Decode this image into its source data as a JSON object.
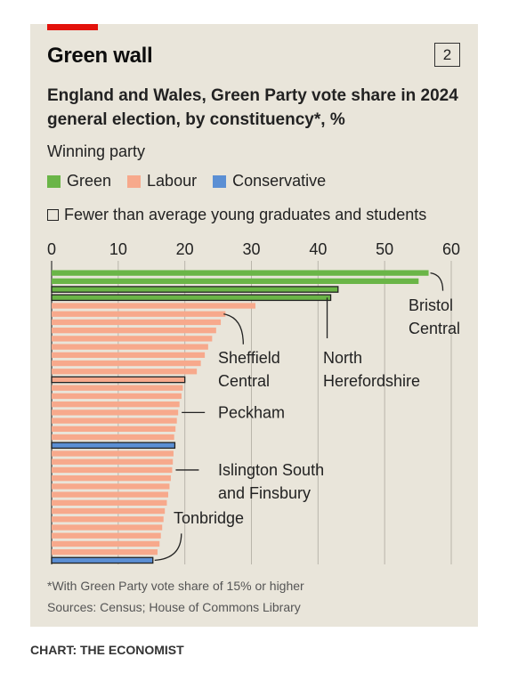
{
  "header": {
    "title": "Green wall",
    "badge": "2"
  },
  "legend": {
    "title": "Winning party",
    "items": [
      {
        "label": "Green",
        "color": "#6ab547"
      },
      {
        "label": "Labour",
        "color": "#f7a98c"
      },
      {
        "label": "Conservative",
        "color": "#5b8fd4"
      }
    ],
    "outline_label": "Fewer than average young graduates and students"
  },
  "footer": {
    "footnote": "*With Green Party vote share of 15% or higher",
    "source": "Sources: Census; House of Commons Library",
    "credit": "CHART: THE ECONOMIST"
  },
  "chart_data": {
    "type": "bar",
    "orientation": "horizontal",
    "title": "England and Wales, Green Party vote share in 2024 general election, by constituency*, %",
    "xlim": [
      0,
      60
    ],
    "xticks": [
      0,
      10,
      20,
      30,
      40,
      50,
      60
    ],
    "grid": true,
    "values": [
      56.6,
      55.1,
      43.0,
      41.9,
      30.6,
      26.1,
      25.4,
      24.7,
      24.1,
      23.5,
      23.0,
      22.4,
      21.8,
      20.0,
      19.7,
      19.5,
      19.2,
      19.0,
      18.8,
      18.6,
      18.4,
      18.5,
      18.3,
      18.2,
      18.1,
      17.9,
      17.7,
      17.5,
      17.3,
      17.0,
      16.8,
      16.6,
      16.4,
      16.2,
      15.9,
      15.2
    ],
    "party": [
      "Green",
      "Green",
      "Green",
      "Green",
      "Labour",
      "Labour",
      "Labour",
      "Labour",
      "Labour",
      "Labour",
      "Labour",
      "Labour",
      "Labour",
      "Labour",
      "Labour",
      "Labour",
      "Labour",
      "Labour",
      "Labour",
      "Labour",
      "Labour",
      "Conservative",
      "Labour",
      "Labour",
      "Labour",
      "Labour",
      "Labour",
      "Labour",
      "Labour",
      "Labour",
      "Labour",
      "Labour",
      "Labour",
      "Labour",
      "Labour",
      "Conservative"
    ],
    "fewer_young_graduates": [
      false,
      false,
      true,
      true,
      false,
      false,
      false,
      false,
      false,
      false,
      false,
      false,
      false,
      true,
      false,
      false,
      false,
      false,
      false,
      false,
      false,
      true,
      false,
      false,
      false,
      false,
      false,
      false,
      false,
      false,
      false,
      false,
      false,
      false,
      false,
      true
    ],
    "annotations": [
      {
        "lines": [
          "Bristol",
          "Central"
        ],
        "bar": 0
      },
      {
        "lines": [
          "North",
          "Herefordshire"
        ],
        "bar": 3
      },
      {
        "lines": [
          "Sheffield",
          "Central"
        ],
        "bar": 5
      },
      {
        "lines": [
          "Peckham"
        ],
        "bar": 17
      },
      {
        "lines": [
          "Islington South",
          "and Finsbury"
        ],
        "bar": 24
      },
      {
        "lines": [
          "Tonbridge"
        ],
        "bar": 35
      }
    ]
  }
}
